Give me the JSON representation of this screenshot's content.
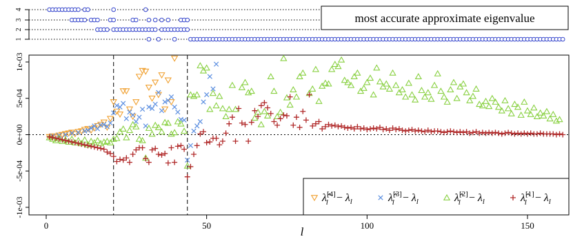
{
  "colors": {
    "lambda4": "#f0a030",
    "lambda3": "#5b8ee0",
    "lambda2": "#88d040",
    "lambda1": "#b02828",
    "circle": "#3344cc",
    "axis": "#000000"
  },
  "chart_data": [
    {
      "type": "scatter",
      "title": "most accurate approximate eigenvalue",
      "xlim": [
        0,
        162
      ],
      "yticks": [
        "1",
        "2",
        "3",
        "4"
      ],
      "marker": "circle",
      "series": [
        {
          "level": 4,
          "x": [
            1,
            2,
            3,
            4,
            5,
            6,
            7,
            8,
            9,
            10,
            12,
            13,
            21,
            31
          ]
        },
        {
          "level": 3,
          "x": [
            8,
            9,
            10,
            11,
            12,
            14,
            15,
            16,
            20,
            21,
            27,
            28,
            32,
            34,
            36,
            38,
            42,
            43,
            44
          ]
        },
        {
          "level": 2,
          "x": [
            16,
            17,
            18,
            19,
            21,
            22,
            23,
            24,
            25,
            26,
            27,
            28,
            29,
            30,
            31,
            32,
            33,
            34,
            36,
            37,
            38,
            39,
            40,
            41,
            42,
            43,
            44
          ]
        },
        {
          "level": 1,
          "x": [
            32,
            35,
            40,
            45,
            46,
            47,
            48,
            49,
            50,
            51,
            52,
            53,
            54,
            55,
            56,
            57,
            58,
            59,
            60,
            61,
            62,
            63,
            64,
            65,
            66,
            67,
            68,
            69,
            70,
            71,
            72,
            73,
            74,
            75,
            76,
            77,
            78,
            79,
            80,
            81,
            82,
            83,
            84,
            85,
            86,
            87,
            88,
            89,
            90,
            91,
            92,
            93,
            94,
            95,
            96,
            97,
            98,
            99,
            100,
            101,
            102,
            103,
            104,
            105,
            106,
            107,
            108,
            109,
            110,
            111,
            112,
            113,
            114,
            115,
            116,
            117,
            118,
            119,
            120,
            121,
            122,
            123,
            124,
            125,
            126,
            127,
            128,
            129,
            130,
            131,
            132,
            133,
            134,
            135,
            136,
            137,
            138,
            139,
            140,
            141,
            142,
            143,
            144,
            145,
            146,
            147,
            148,
            149,
            150,
            151,
            152,
            153,
            154,
            155,
            156,
            157,
            158,
            159,
            160,
            161
          ]
        }
      ]
    },
    {
      "type": "scatter",
      "xlabel": "l",
      "xlim": [
        0,
        162
      ],
      "ylim": [
        -0.001,
        0.001
      ],
      "xticks": [
        0,
        50,
        100,
        150
      ],
      "xtick_labels": [
        "0",
        "50",
        "100",
        "150"
      ],
      "yticks": [
        -0.001,
        -0.0005,
        0,
        0.0005,
        0.001
      ],
      "ytick_labels": [
        "-1e-03",
        "-5e-04",
        "0e+00",
        "5e-04",
        "1e-03"
      ],
      "vlines": [
        21,
        44
      ],
      "hline": 0,
      "legend_position": "bottom-right",
      "series": [
        {
          "name": "λ̂_l^[4] − λ_l",
          "marker": "triangle-down",
          "x": [
            1,
            2,
            3,
            4,
            5,
            6,
            7,
            8,
            9,
            10,
            11,
            12,
            13,
            14,
            15,
            16,
            17,
            18,
            19,
            20,
            21,
            22,
            23,
            24,
            25,
            26,
            27,
            28,
            29,
            30,
            31,
            32,
            33,
            34,
            35,
            36,
            37,
            38,
            39,
            40
          ],
          "y": [
            -3e-05,
            -2e-05,
            -3e-05,
            -1e-05,
            0,
            1e-05,
            2e-05,
            3e-05,
            1e-05,
            4e-05,
            5e-05,
            7e-05,
            8e-05,
            6e-05,
            9e-05,
            0.00012,
            0.00014,
            0.00017,
            0.0001,
            0.00022,
            0.00045,
            0.00032,
            0.00028,
            0.0006,
            0.0006,
            0.00035,
            0.00025,
            0.00045,
            0.0008,
            0.00088,
            0.00087,
            0.00065,
            0.0005,
            0.00072,
            0.00055,
            0.00082,
            0.00035,
            0.00075,
            0.00045,
            0.00105
          ]
        },
        {
          "name": "λ̂_l^[3] − λ_l",
          "marker": "x",
          "x": [
            2,
            4,
            6,
            8,
            10,
            12,
            13,
            14,
            15,
            16,
            17,
            18,
            19,
            20,
            21,
            22,
            23,
            24,
            25,
            26,
            27,
            28,
            29,
            30,
            31,
            32,
            33,
            34,
            35,
            36,
            37,
            38,
            39,
            40,
            41,
            42,
            43,
            44,
            45,
            46,
            47,
            48,
            49,
            50,
            51,
            52,
            53
          ],
          "y": [
            -2e-05,
            -1e-05,
            0,
            2e-05,
            3e-05,
            5e-05,
            6e-05,
            9e-05,
            0.00012,
            8e-05,
            0.00013,
            0.00014,
            0.00011,
            0.00016,
            0.0003,
            0.0004,
            0.00038,
            0.00043,
            0.00022,
            0.00031,
            0.00027,
            0.00018,
            0.00024,
            0.00035,
            0.00012,
            0.00038,
            0.00036,
            0.00042,
            0.00058,
            0.00033,
            0.00045,
            0.00047,
            0.00052,
            0.00038,
            0.00031,
            0.00021,
            0.0002,
            -0.00035,
            -0.00015,
            5e-05,
            0.00012,
            0.00018,
            0.00045,
            0.00055,
            0.0008,
            0.00063,
            0.00097
          ]
        },
        {
          "name": "λ̂_l^[2] − λ_l",
          "marker": "triangle-up",
          "x": [
            1,
            2,
            3,
            4,
            5,
            6,
            7,
            8,
            9,
            10,
            11,
            12,
            13,
            14,
            15,
            16,
            17,
            18,
            19,
            20,
            21,
            22,
            23,
            24,
            25,
            26,
            27,
            28,
            29,
            30,
            31,
            32,
            33,
            34,
            35,
            36,
            37,
            38,
            39,
            40,
            41,
            42,
            43,
            44,
            45,
            46,
            47,
            48,
            49,
            50,
            51,
            52,
            53,
            54,
            55,
            56,
            57,
            58,
            59,
            60,
            61,
            62,
            63,
            64,
            65,
            66,
            67,
            68,
            69,
            70,
            71,
            72,
            73,
            74,
            75,
            76,
            77,
            78,
            79,
            80,
            81,
            82,
            83,
            84,
            85,
            86,
            87,
            88,
            89,
            90,
            91,
            92,
            93,
            94,
            95,
            96,
            97,
            98,
            99,
            100,
            101,
            102,
            103,
            104,
            105,
            106,
            107,
            108,
            109,
            110,
            111,
            112,
            113,
            114,
            115,
            116,
            117,
            118,
            119,
            120,
            121,
            122,
            123,
            124,
            125,
            126,
            127,
            128,
            129,
            130,
            131,
            132,
            133,
            134,
            135,
            136,
            137,
            138,
            139,
            140,
            141,
            142,
            143,
            144,
            145,
            146,
            147,
            148,
            149,
            150,
            151,
            152,
            153,
            154,
            155,
            156,
            157,
            158,
            159,
            160
          ],
          "y": [
            -4e-05,
            -6e-05,
            -8e-05,
            -5e-05,
            -9e-05,
            -7e-05,
            -0.0001,
            -6e-05,
            -0.00011,
            -8e-05,
            -0.00012,
            -7e-05,
            -0.00014,
            -9e-05,
            -0.00011,
            -8e-05,
            -0.00012,
            -0.0001,
            -9e-05,
            -0.00011,
            -6e-05,
            -5e-05,
            4e-05,
            8e-05,
            -4e-05,
            6e-05,
            0.00014,
            0.00011,
            -6e-05,
            -8e-05,
            -0.00032,
            9e-05,
            1e-05,
            0.00013,
            0.0001,
            4e-05,
            0.00017,
            0.00016,
            1e-05,
            3e-05,
            0.00018,
            0.00015,
            5e-05,
            -0.00043,
            0.00055,
            0.00053,
            0.00055,
            0.00095,
            0.00088,
            0.00092,
            0.00035,
            0.00057,
            0.0004,
            0.00053,
            0.00036,
            0.00025,
            0.00035,
            0.00068,
            0.00035,
            0.0011,
            0.00065,
            0.00072,
            0.00058,
            0.0006,
            0.00023,
            0.00031,
            0.00014,
            0.00032,
            0.00026,
            0.0008,
            0.0006,
            0.00025,
            0.00031,
            0.00105,
            0.00051,
            0.00041,
            0.00062,
            0.00052,
            0.0008,
            0.00085,
            0.0011,
            0.00057,
            0.00063,
            0.0009,
            0.00046,
            0.00067,
            0.00071,
            0.0007,
            0.0009,
            0.00097,
            0.00094,
            0.00103,
            0.00075,
            0.00072,
            0.00068,
            0.0008,
            0.00085,
            0.0006,
            0.00064,
            0.00072,
            0.00078,
            0.00055,
            0.00092,
            0.00073,
            0.00066,
            0.0007,
            0.00063,
            0.00085,
            0.00068,
            0.00058,
            0.00062,
            0.00052,
            0.00071,
            0.00055,
            0.00048,
            0.0008,
            0.00061,
            0.00052,
            0.00058,
            0.00049,
            0.00068,
            0.00084,
            0.0006,
            0.00052,
            0.00045,
            0.00062,
            0.00072,
            0.0005,
            0.00066,
            0.0007,
            0.00058,
            0.00047,
            0.00053,
            0.00063,
            0.00042,
            0.0004,
            0.00046,
            0.00039,
            0.0005,
            0.00045,
            0.00038,
            0.00033,
            0.00047,
            0.00036,
            0.00029,
            0.00042,
            0.00038,
            0.00027,
            0.00045,
            0.00033,
            0.00028,
            0.00037,
            0.00025,
            0.0003,
            0.00026,
            0.00032,
            0.00022,
            0.00028,
            0.00019,
            0.00021
          ]
        },
        {
          "name": "λ̂_l^[1] − λ_l",
          "marker": "plus",
          "x": [
            1,
            2,
            3,
            4,
            5,
            6,
            7,
            8,
            9,
            10,
            11,
            12,
            13,
            14,
            15,
            16,
            17,
            18,
            19,
            20,
            21,
            22,
            23,
            24,
            25,
            26,
            27,
            28,
            29,
            30,
            31,
            32,
            33,
            34,
            35,
            36,
            37,
            38,
            39,
            40,
            41,
            42,
            43,
            44,
            45,
            46,
            47,
            48,
            49,
            50,
            51,
            52,
            53,
            54,
            55,
            56,
            57,
            58,
            59,
            60,
            61,
            62,
            63,
            64,
            65,
            66,
            67,
            68,
            69,
            70,
            71,
            72,
            73,
            74,
            75,
            76,
            77,
            78,
            79,
            80,
            81,
            82,
            83,
            84,
            85,
            86,
            87,
            88,
            89,
            90,
            91,
            92,
            93,
            94,
            95,
            96,
            97,
            98,
            99,
            100,
            101,
            102,
            103,
            104,
            105,
            106,
            107,
            108,
            109,
            110,
            111,
            112,
            113,
            114,
            115,
            116,
            117,
            118,
            119,
            120,
            121,
            122,
            123,
            124,
            125,
            126,
            127,
            128,
            129,
            130,
            131,
            132,
            133,
            134,
            135,
            136,
            137,
            138,
            139,
            140,
            141,
            142,
            143,
            144,
            145,
            146,
            147,
            148,
            149,
            150,
            151,
            152,
            153,
            154,
            155,
            156,
            157,
            158,
            159,
            160,
            161
          ],
          "y": [
            -3e-05,
            -4e-05,
            -5e-05,
            -6e-05,
            -7e-05,
            -8e-05,
            -9e-05,
            -0.0001,
            -0.00011,
            -0.00012,
            -0.00013,
            -0.00014,
            -0.00015,
            -0.00016,
            -0.00017,
            -0.00018,
            -0.00019,
            -0.0002,
            -0.00024,
            -0.00026,
            -0.0003,
            -0.00037,
            -0.00034,
            -0.00035,
            -0.00032,
            -0.00038,
            -0.00027,
            -0.00021,
            -0.00018,
            -0.00018,
            -0.00033,
            -0.00038,
            -0.00021,
            -0.00019,
            -0.00027,
            -0.00028,
            -0.00026,
            -0.00039,
            -0.00018,
            -0.00038,
            -0.00016,
            -0.00015,
            -0.0002,
            -0.00058,
            -0.00044,
            -0.00027,
            -0.00015,
            1e-05,
            4e-05,
            -0.00011,
            -0.0001,
            -5e-05,
            -5e-05,
            -0.00014,
            -9e-05,
            2e-05,
            0.00015,
            0.00024,
            -9e-05,
            0.00036,
            0.00016,
            0.00014,
            -9e-05,
            0.00017,
            0.00033,
            0.00025,
            0.0004,
            0.00044,
            0.00037,
            0.00029,
            0.00018,
            0.00013,
            0.00022,
            0.00027,
            0.00026,
            0.00052,
            0.00013,
            0.00024,
            0.0001,
            0.00032,
            0.0002,
            0.00055,
            0.00012,
            0.00015,
            0.00018,
            8e-05,
            0.00011,
            0.00014,
            0.00012,
            0.00013,
            0.00011,
            0.00012,
            0.0001,
            9e-05,
            0.0001,
            8e-05,
            0.00011,
            8e-05,
            9e-05,
            7e-05,
            8e-05,
            9e-05,
            8e-05,
            0.0001,
            7e-05,
            8e-05,
            6e-05,
            9e-05,
            7e-05,
            8e-05,
            6e-05,
            5e-05,
            6e-05,
            7e-05,
            5e-05,
            6e-05,
            5e-05,
            4e-05,
            6e-05,
            4e-05,
            5e-05,
            5e-05,
            4e-05,
            3e-05,
            4e-05,
            5e-05,
            4e-05,
            3e-05,
            4e-05,
            3e-05,
            4e-05,
            2e-05,
            3e-05,
            4e-05,
            2e-05,
            3e-05,
            2e-05,
            3e-05,
            2e-05,
            3e-05,
            2e-05,
            1e-05,
            2e-05,
            3e-05,
            2e-05,
            1e-05,
            2e-05,
            1e-05,
            2e-05,
            1e-05,
            2e-05,
            1e-05,
            1e-05,
            2e-05,
            1e-05,
            1e-05,
            1e-05,
            1e-05,
            0.0,
            1e-05,
            0.0
          ]
        }
      ]
    }
  ]
}
